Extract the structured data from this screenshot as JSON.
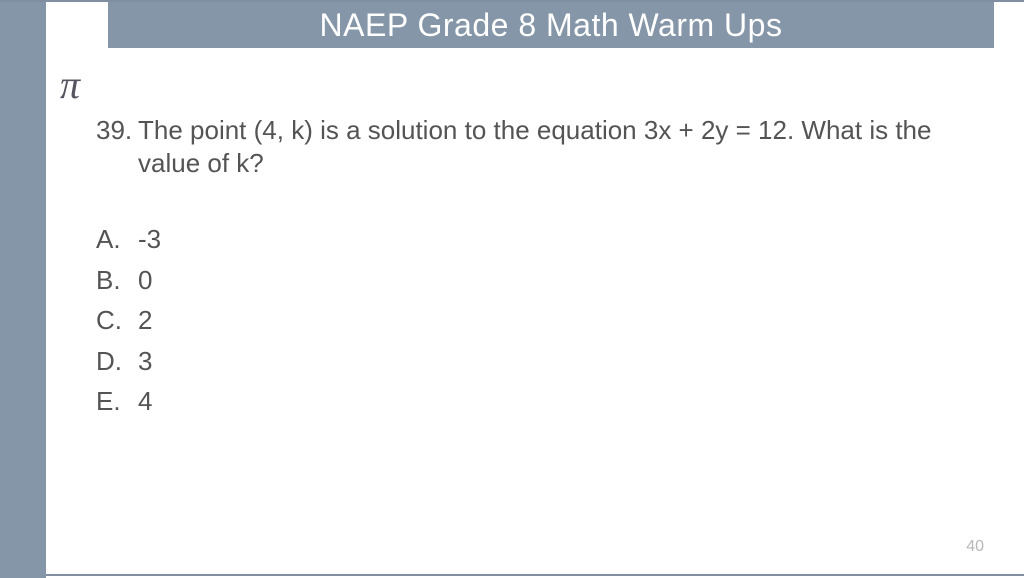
{
  "header": {
    "title": "NAEP Grade 8 Math Warm Ups"
  },
  "decoration": {
    "pi_symbol": "π"
  },
  "question": {
    "number": "39.",
    "text": "The point (4, k) is a solution to the equation 3x + 2y = 12. What is the value of k?"
  },
  "choices": [
    {
      "letter": "A.",
      "text": "-3"
    },
    {
      "letter": "B.",
      "text": "0"
    },
    {
      "letter": "C.",
      "text": "2"
    },
    {
      "letter": "D.",
      "text": "3"
    },
    {
      "letter": "E.",
      "text": "4"
    }
  ],
  "page_number": "40",
  "colors": {
    "bar": "#8596a8",
    "title_text": "#ffffff",
    "body_text": "#545454",
    "page_num": "#b8b8b8",
    "background": "#ffffff"
  }
}
